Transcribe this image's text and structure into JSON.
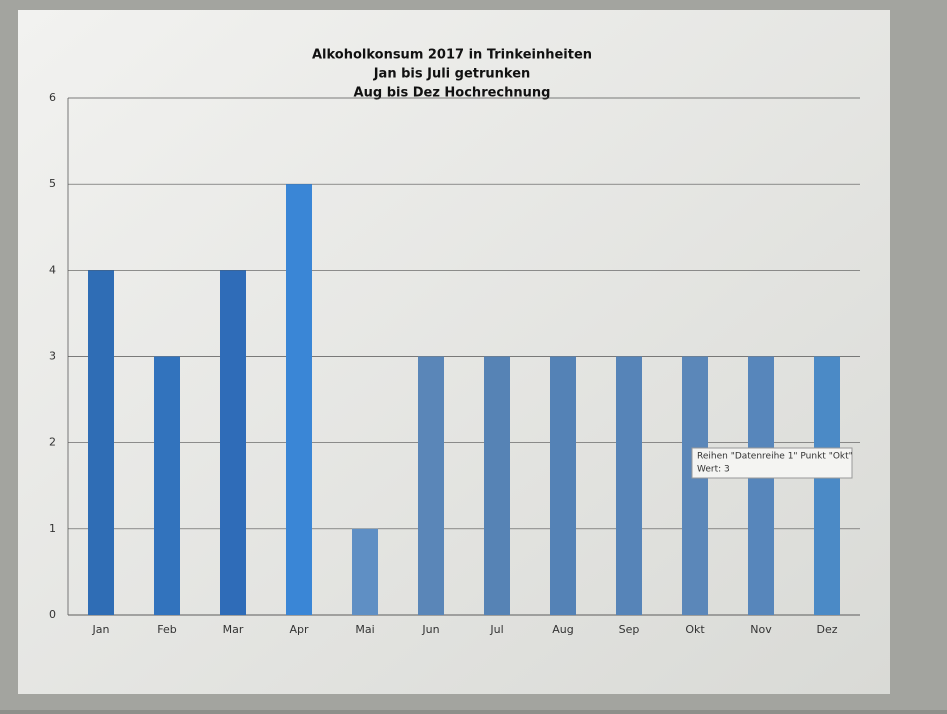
{
  "chart_data": {
    "type": "bar",
    "title": [
      "Alkoholkonsum 2017 in Trinkeinheiten",
      "Jan bis Juli getrunken",
      "Aug bis Dez Hochrechnung"
    ],
    "categories": [
      "Jan",
      "Feb",
      "Mar",
      "Apr",
      "Mai",
      "Jun",
      "Jul",
      "Aug",
      "Sep",
      "Okt",
      "Nov",
      "Dez"
    ],
    "values": [
      4,
      3,
      4,
      5,
      1,
      3,
      3,
      3,
      3,
      3,
      3,
      3
    ],
    "colors": [
      "#2f6db5",
      "#3273bd",
      "#2f6cb8",
      "#3a86d6",
      "#5f8fc4",
      "#5a86b8",
      "#5683b5",
      "#5482b6",
      "#5684b8",
      "#5b87b9",
      "#5786bb",
      "#4b8ac6"
    ],
    "ylim": [
      0,
      6
    ],
    "yticks": [
      0,
      1,
      2,
      3,
      4,
      5,
      6
    ],
    "grid": true,
    "tooltip": [
      "Reihen \"Datenreihe 1\" Punkt \"Okt\"",
      "Wert: 3"
    ]
  }
}
